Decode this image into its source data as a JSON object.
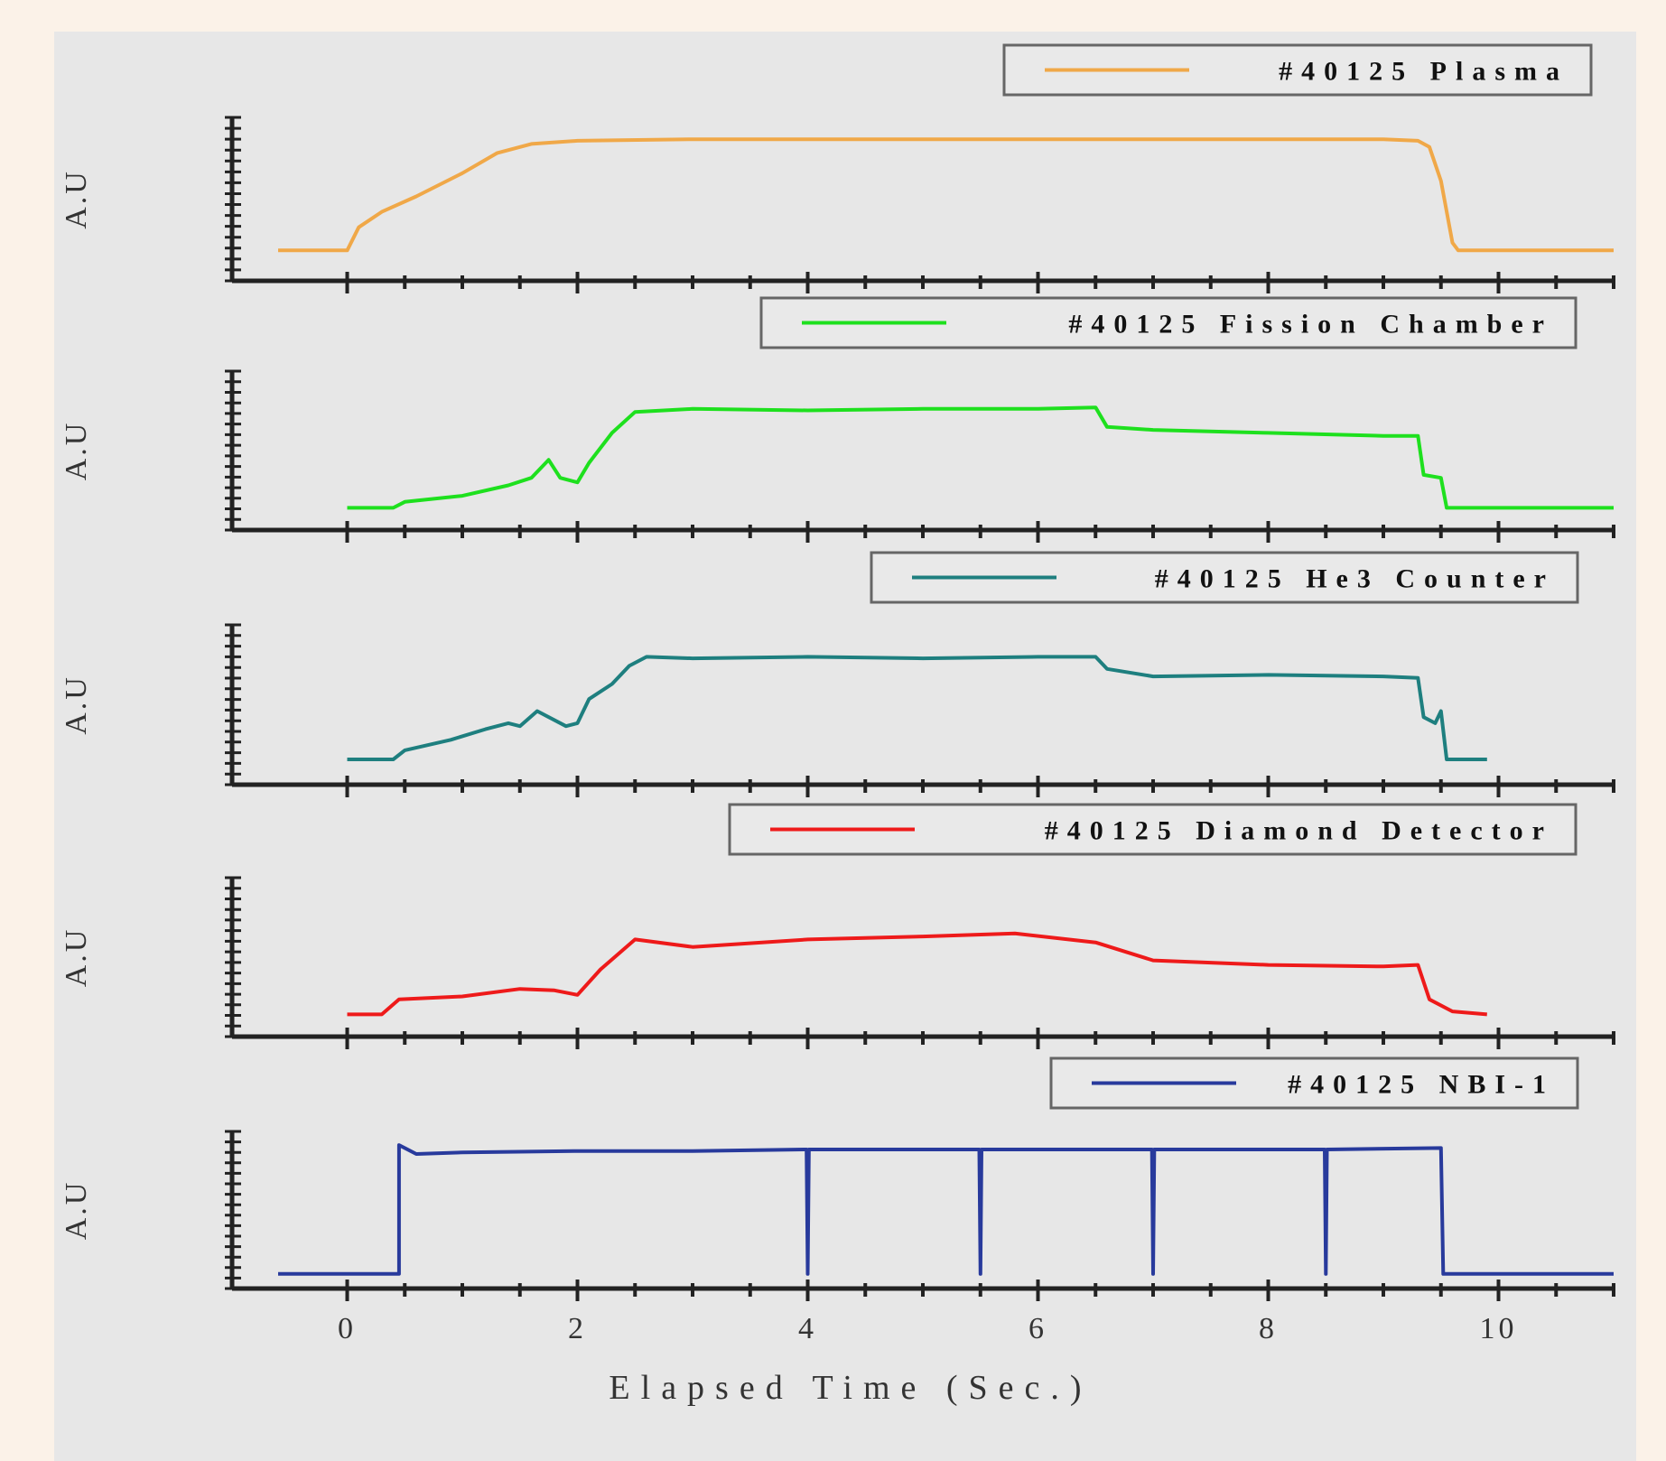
{
  "chart_data": {
    "type": "line",
    "xlabel": "Elapsed Time (Sec.)",
    "xlim": [
      -1,
      11
    ],
    "xticks": [
      0,
      2,
      4,
      6,
      8,
      10
    ],
    "panels": [
      {
        "ylabel": "A.U",
        "legend": "#40125 Plasma",
        "color": "#f0a848",
        "points": [
          [
            -0.6,
            0.15
          ],
          [
            0.0,
            0.15
          ],
          [
            0.1,
            0.3
          ],
          [
            0.3,
            0.4
          ],
          [
            0.6,
            0.5
          ],
          [
            1.0,
            0.65
          ],
          [
            1.3,
            0.78
          ],
          [
            1.6,
            0.84
          ],
          [
            2.0,
            0.86
          ],
          [
            3.0,
            0.87
          ],
          [
            5.0,
            0.87
          ],
          [
            7.0,
            0.87
          ],
          [
            9.0,
            0.87
          ],
          [
            9.3,
            0.86
          ],
          [
            9.4,
            0.82
          ],
          [
            9.5,
            0.6
          ],
          [
            9.6,
            0.2
          ],
          [
            9.65,
            0.15
          ],
          [
            11.0,
            0.15
          ]
        ]
      },
      {
        "ylabel": "A.U",
        "legend": "#40125 Fission Chamber",
        "color": "#1ee01e",
        "points": [
          [
            0.0,
            0.1
          ],
          [
            0.4,
            0.1
          ],
          [
            0.5,
            0.14
          ],
          [
            1.0,
            0.18
          ],
          [
            1.4,
            0.25
          ],
          [
            1.6,
            0.3
          ],
          [
            1.75,
            0.42
          ],
          [
            1.85,
            0.3
          ],
          [
            2.0,
            0.27
          ],
          [
            2.1,
            0.4
          ],
          [
            2.3,
            0.6
          ],
          [
            2.5,
            0.74
          ],
          [
            3.0,
            0.76
          ],
          [
            4.0,
            0.75
          ],
          [
            5.0,
            0.76
          ],
          [
            6.0,
            0.76
          ],
          [
            6.5,
            0.77
          ],
          [
            6.6,
            0.64
          ],
          [
            7.0,
            0.62
          ],
          [
            8.0,
            0.6
          ],
          [
            9.0,
            0.58
          ],
          [
            9.3,
            0.58
          ],
          [
            9.35,
            0.32
          ],
          [
            9.5,
            0.3
          ],
          [
            9.55,
            0.1
          ],
          [
            11.0,
            0.1
          ]
        ]
      },
      {
        "ylabel": "A.U",
        "legend": "#40125 He3 Counter",
        "color": "#1e7f7f",
        "points": [
          [
            0.0,
            0.12
          ],
          [
            0.4,
            0.12
          ],
          [
            0.5,
            0.18
          ],
          [
            0.9,
            0.25
          ],
          [
            1.2,
            0.32
          ],
          [
            1.4,
            0.36
          ],
          [
            1.5,
            0.34
          ],
          [
            1.65,
            0.44
          ],
          [
            1.9,
            0.34
          ],
          [
            2.0,
            0.36
          ],
          [
            2.1,
            0.52
          ],
          [
            2.3,
            0.62
          ],
          [
            2.45,
            0.74
          ],
          [
            2.6,
            0.8
          ],
          [
            3.0,
            0.79
          ],
          [
            4.0,
            0.8
          ],
          [
            5.0,
            0.79
          ],
          [
            6.0,
            0.8
          ],
          [
            6.5,
            0.8
          ],
          [
            6.6,
            0.72
          ],
          [
            7.0,
            0.67
          ],
          [
            8.0,
            0.68
          ],
          [
            9.0,
            0.67
          ],
          [
            9.3,
            0.66
          ],
          [
            9.35,
            0.4
          ],
          [
            9.45,
            0.36
          ],
          [
            9.5,
            0.44
          ],
          [
            9.55,
            0.12
          ],
          [
            9.9,
            0.12
          ]
        ]
      },
      {
        "ylabel": "A.U",
        "legend": "#40125 Diamond Detector",
        "color": "#ee1a1a",
        "points": [
          [
            0.0,
            0.1
          ],
          [
            0.3,
            0.1
          ],
          [
            0.45,
            0.2
          ],
          [
            1.0,
            0.22
          ],
          [
            1.5,
            0.27
          ],
          [
            1.8,
            0.26
          ],
          [
            2.0,
            0.23
          ],
          [
            2.2,
            0.4
          ],
          [
            2.5,
            0.6
          ],
          [
            3.0,
            0.55
          ],
          [
            4.0,
            0.6
          ],
          [
            5.0,
            0.62
          ],
          [
            5.8,
            0.64
          ],
          [
            6.5,
            0.58
          ],
          [
            7.0,
            0.46
          ],
          [
            8.0,
            0.43
          ],
          [
            9.0,
            0.42
          ],
          [
            9.3,
            0.43
          ],
          [
            9.4,
            0.2
          ],
          [
            9.6,
            0.12
          ],
          [
            9.9,
            0.1
          ]
        ]
      },
      {
        "ylabel": "A.U",
        "legend": "#40125 NBI-1",
        "color": "#283a9c",
        "points": [
          [
            -0.6,
            0.05
          ],
          [
            0.45,
            0.05
          ],
          [
            0.45,
            0.92
          ],
          [
            0.6,
            0.86
          ],
          [
            1.0,
            0.87
          ],
          [
            2.0,
            0.88
          ],
          [
            3.0,
            0.88
          ],
          [
            3.99,
            0.89
          ],
          [
            4.0,
            0.05
          ],
          [
            4.01,
            0.89
          ],
          [
            5.49,
            0.89
          ],
          [
            5.5,
            0.05
          ],
          [
            5.51,
            0.89
          ],
          [
            6.99,
            0.89
          ],
          [
            7.0,
            0.05
          ],
          [
            7.01,
            0.89
          ],
          [
            8.49,
            0.89
          ],
          [
            8.5,
            0.05
          ],
          [
            8.51,
            0.89
          ],
          [
            9.5,
            0.9
          ],
          [
            9.52,
            0.05
          ],
          [
            11.0,
            0.05
          ]
        ]
      }
    ]
  }
}
